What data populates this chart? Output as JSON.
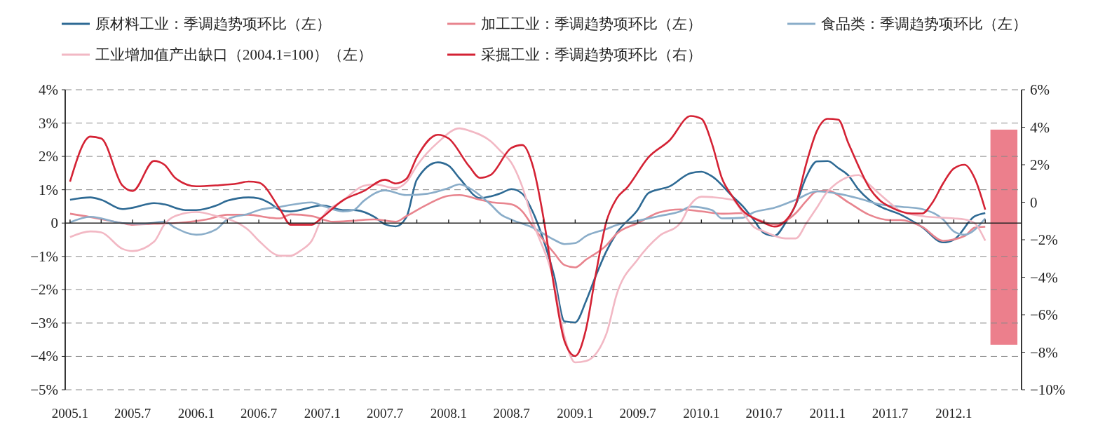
{
  "chart_data": {
    "type": "line",
    "legend": "top",
    "grid": "y",
    "line_style": "solid",
    "xlim": [
      "2004-12-18",
      "2012-07-15"
    ],
    "xticks": [
      {
        "value": "2005-01",
        "label": "2005.1"
      },
      {
        "value": "2005-04",
        "label": null
      },
      {
        "value": "2005-07",
        "label": "2005.7"
      },
      {
        "value": "2005-10",
        "label": null
      },
      {
        "value": "2006-01",
        "label": "2006.1"
      },
      {
        "value": "2006-04",
        "label": null
      },
      {
        "value": "2006-07",
        "label": "2006.7"
      },
      {
        "value": "2006-10",
        "label": null
      },
      {
        "value": "2007-01",
        "label": "2007.1"
      },
      {
        "value": "2007-04",
        "label": null
      },
      {
        "value": "2007-07",
        "label": "2007.7"
      },
      {
        "value": "2007-10",
        "label": null
      },
      {
        "value": "2008-01",
        "label": "2008.1"
      },
      {
        "value": "2008-04",
        "label": null
      },
      {
        "value": "2008-07",
        "label": "2008.7"
      },
      {
        "value": "2008-10",
        "label": null
      },
      {
        "value": "2009-01",
        "label": "2009.1"
      },
      {
        "value": "2009-04",
        "label": null
      },
      {
        "value": "2009-07",
        "label": "2009.7"
      },
      {
        "value": "2009-10",
        "label": null
      },
      {
        "value": "2010-01",
        "label": "2010.1"
      },
      {
        "value": "2010-04",
        "label": null
      },
      {
        "value": "2010-07",
        "label": "2010.7"
      },
      {
        "value": "2010-10",
        "label": null
      },
      {
        "value": "2011-01",
        "label": "2011.1"
      },
      {
        "value": "2011-04",
        "label": null
      },
      {
        "value": "2011-07",
        "label": "2011.7"
      },
      {
        "value": "2011-10",
        "label": null
      },
      {
        "value": "2012-01",
        "label": "2012.1"
      },
      {
        "value": "2012-04",
        "label": null
      }
    ],
    "ylim": [
      -5,
      4
    ],
    "yticks": [
      {
        "value": 4,
        "label": "4%"
      },
      {
        "value": 3,
        "label": "3%"
      },
      {
        "value": 2,
        "label": "2%"
      },
      {
        "value": 1,
        "label": "1%"
      },
      0,
      {
        "value": -1,
        "label": "−1%"
      },
      {
        "value": -2,
        "label": "−2%"
      },
      {
        "value": -3,
        "label": "−3%"
      },
      {
        "value": -4,
        "label": "−4%"
      },
      {
        "value": -5,
        "label": "−5%"
      }
    ],
    "y2lim": [
      -10,
      6
    ],
    "y2ticks": [
      {
        "value": 6,
        "label": "6%"
      },
      {
        "value": 4,
        "label": "4%"
      },
      {
        "value": 2,
        "label": "2%"
      },
      0,
      {
        "value": -2,
        "label": "−2%"
      },
      {
        "value": -4,
        "label": "−4%"
      },
      {
        "value": -6,
        "label": "−6%"
      },
      {
        "value": -8,
        "label": "−8%"
      },
      {
        "value": -10,
        "label": "−10%"
      }
    ],
    "bands": [
      {
        "axis": "x",
        "from": "2012-04-16",
        "to": "2012-07-03",
        "color": "#ec7f8c"
      }
    ],
    "series": [
      {
        "name": "原材料工业：季调趋势项环比（左）",
        "color": "#2e6a94",
        "x": [
          "2005-01",
          "2005-03",
          "2005-04",
          "2005-06",
          "2005-07",
          "2005-09",
          "2005-10",
          "2005-12",
          "2006-01",
          "2006-03",
          "2006-04",
          "2006-06",
          "2006-07",
          "2006-08",
          "2006-09",
          "2006-10",
          "2007-01",
          "2007-03",
          "2007-04",
          "2007-06",
          "2007-07",
          "2007-08",
          "2007-09",
          "2007-10",
          "2007-12",
          "2008-01",
          "2008-02",
          "2008-04",
          "2008-05",
          "2008-06",
          "2008-07",
          "2008-08",
          "2008-09",
          "2008-10",
          "2008-11",
          "2008-12",
          "2009-01",
          "2009-02",
          "2009-03",
          "2009-04",
          "2009-05",
          "2009-07",
          "2009-08",
          "2009-10",
          "2009-12",
          "2010-01",
          "2010-02",
          "2010-04",
          "2010-05",
          "2010-06",
          "2010-07",
          "2010-08",
          "2010-09",
          "2010-10",
          "2010-11",
          "2010-12",
          "2011-01",
          "2011-02",
          "2011-03",
          "2011-04",
          "2011-05",
          "2011-06",
          "2011-08",
          "2011-10",
          "2011-12",
          "2012-01",
          "2012-03",
          "2012-04"
        ],
        "values": [
          0.7,
          0.77,
          0.7,
          0.42,
          0.46,
          0.6,
          0.56,
          0.39,
          0.39,
          0.53,
          0.67,
          0.77,
          0.74,
          0.6,
          0.39,
          0.35,
          0.53,
          0.39,
          0.39,
          0.18,
          -0.04,
          -0.1,
          0.18,
          1.3,
          1.82,
          1.72,
          1.35,
          0.75,
          0.8,
          0.9,
          1.02,
          0.88,
          0.32,
          -0.5,
          -1.58,
          -2.95,
          -2.98,
          -2.35,
          -1.6,
          -0.85,
          -0.3,
          0.4,
          0.9,
          1.1,
          1.5,
          1.54,
          1.4,
          0.8,
          0.5,
          0.1,
          -0.3,
          -0.38,
          0.0,
          0.55,
          1.4,
          1.85,
          1.86,
          1.65,
          1.44,
          1.0,
          0.7,
          0.5,
          0.25,
          -0.12,
          -0.58,
          -0.5,
          0.2,
          0.3
        ]
      },
      {
        "name": "加工工业：季调趋势项环比（左）",
        "color": "#e8848e",
        "x": [
          "2005-01",
          "2005-03",
          "2005-06",
          "2005-07",
          "2005-09",
          "2005-11",
          "2006-02",
          "2006-04",
          "2006-06",
          "2006-08",
          "2006-09",
          "2006-10",
          "2006-12",
          "2007-02",
          "2007-04",
          "2007-06",
          "2007-08",
          "2007-09",
          "2007-11",
          "2008-01",
          "2008-02",
          "2008-04",
          "2008-05",
          "2008-07",
          "2008-08",
          "2008-09",
          "2008-11",
          "2008-12",
          "2009-01",
          "2009-02",
          "2009-04",
          "2009-05",
          "2009-07",
          "2009-09",
          "2009-11",
          "2010-01",
          "2010-03",
          "2010-05",
          "2010-06",
          "2010-08",
          "2010-10",
          "2010-11",
          "2010-12",
          "2011-01",
          "2011-03",
          "2011-05",
          "2011-07",
          "2011-08",
          "2011-10",
          "2011-12",
          "2012-02",
          "2012-03",
          "2012-04"
        ],
        "values": [
          0.28,
          0.18,
          0.0,
          -0.05,
          -0.02,
          0.0,
          0.11,
          0.25,
          0.25,
          0.16,
          0.14,
          0.26,
          0.21,
          0.04,
          0.07,
          0.11,
          0.04,
          0.21,
          0.56,
          0.82,
          0.84,
          0.7,
          0.63,
          0.56,
          0.35,
          -0.11,
          -0.9,
          -1.26,
          -1.33,
          -1.1,
          -0.67,
          -0.32,
          0.0,
          0.32,
          0.41,
          0.35,
          0.28,
          0.3,
          0.16,
          -0.04,
          0.3,
          0.67,
          0.95,
          0.97,
          0.63,
          0.25,
          0.09,
          0.09,
          -0.11,
          -0.53,
          -0.39,
          -0.14,
          -0.11
        ]
      },
      {
        "name": "食品类：季调趋势项环比（左）",
        "color": "#8aadc9",
        "x": [
          "2005-01",
          "2005-03",
          "2005-06",
          "2005-08",
          "2005-10",
          "2005-11",
          "2006-01",
          "2006-03",
          "2006-04",
          "2006-06",
          "2006-07",
          "2006-09",
          "2006-12",
          "2007-01",
          "2007-03",
          "2007-04",
          "2007-05",
          "2007-07",
          "2007-09",
          "2007-11",
          "2008-01",
          "2008-02",
          "2008-03",
          "2008-05",
          "2008-06",
          "2008-07",
          "2008-09",
          "2008-11",
          "2008-12",
          "2009-01",
          "2009-02",
          "2009-04",
          "2009-05",
          "2009-07",
          "2009-09",
          "2009-11",
          "2009-12",
          "2010-02",
          "2010-03",
          "2010-05",
          "2010-06",
          "2010-08",
          "2010-10",
          "2010-12",
          "2011-02",
          "2011-04",
          "2011-06",
          "2011-08",
          "2011-10",
          "2011-12",
          "2012-01",
          "2012-02",
          "2012-04"
        ],
        "values": [
          0.02,
          0.19,
          0.0,
          -0.02,
          0.04,
          -0.14,
          -0.35,
          -0.18,
          0.11,
          0.28,
          0.39,
          0.49,
          0.62,
          0.52,
          0.35,
          0.39,
          0.67,
          0.98,
          0.84,
          0.88,
          1.05,
          1.16,
          1.05,
          0.56,
          0.25,
          0.1,
          -0.14,
          -0.5,
          -0.63,
          -0.6,
          -0.39,
          -0.18,
          -0.06,
          0.07,
          0.21,
          0.35,
          0.49,
          0.39,
          0.14,
          0.16,
          0.32,
          0.46,
          0.7,
          0.95,
          0.88,
          0.74,
          0.56,
          0.49,
          0.42,
          0.11,
          -0.25,
          -0.35,
          0.14
        ]
      },
      {
        "name": "工业增加值产出缺口（2004.1=100）（左）",
        "color": "#f2b8c4",
        "x": [
          "2005-01",
          "2005-03",
          "2005-04",
          "2005-06",
          "2005-07",
          "2005-09",
          "2005-10",
          "2005-11",
          "2006-01",
          "2006-03",
          "2006-05",
          "2006-06",
          "2006-07",
          "2006-09",
          "2006-10",
          "2006-11",
          "2006-12",
          "2007-01",
          "2007-03",
          "2007-05",
          "2007-06",
          "2007-08",
          "2007-09",
          "2007-10",
          "2007-12",
          "2008-02",
          "2008-03",
          "2008-05",
          "2008-06",
          "2008-07",
          "2008-08",
          "2008-09",
          "2008-11",
          "2008-12",
          "2009-01",
          "2009-02",
          "2009-04",
          "2009-05",
          "2009-07",
          "2009-09",
          "2009-11",
          "2009-12",
          "2010-01",
          "2010-04",
          "2010-05",
          "2010-06",
          "2010-07",
          "2010-09",
          "2010-10",
          "2010-11",
          "2010-12",
          "2011-01",
          "2011-04",
          "2011-05",
          "2011-07",
          "2011-08",
          "2011-10",
          "2012-01",
          "2012-02",
          "2012-03",
          "2012-04"
        ],
        "values": [
          -0.42,
          -0.25,
          -0.28,
          -0.77,
          -0.84,
          -0.56,
          -0.04,
          0.21,
          0.33,
          0.21,
          0.0,
          -0.21,
          -0.53,
          -0.98,
          -0.98,
          -0.81,
          -0.53,
          0.18,
          0.67,
          1.12,
          1.16,
          1.05,
          1.23,
          1.72,
          2.42,
          2.84,
          2.77,
          2.46,
          2.14,
          1.8,
          1.09,
          0.04,
          -1.79,
          -3.4,
          -4.18,
          -4.14,
          -3.33,
          -2.14,
          -1.09,
          -0.39,
          0.0,
          0.56,
          0.79,
          0.7,
          0.3,
          -0.11,
          -0.25,
          -0.46,
          -0.46,
          0.0,
          0.46,
          0.95,
          1.44,
          1.16,
          0.6,
          0.35,
          0.21,
          0.14,
          0.11,
          0.0,
          -0.53
        ]
      },
      {
        "name": "采掘工业：季调趋势项环比（右）",
        "color": "#d42234",
        "axis": "y2",
        "x": [
          "2005-01",
          "2005-03",
          "2005-04",
          "2005-06",
          "2005-07",
          "2005-09",
          "2005-10",
          "2005-11",
          "2006-01",
          "2006-03",
          "2006-05",
          "2006-06",
          "2006-07",
          "2006-09",
          "2006-10",
          "2006-12",
          "2007-01",
          "2007-03",
          "2007-05",
          "2007-07",
          "2007-08",
          "2007-09",
          "2007-10",
          "2007-12",
          "2008-01",
          "2008-03",
          "2008-04",
          "2008-05",
          "2008-07",
          "2008-08",
          "2008-09",
          "2008-10",
          "2008-11",
          "2008-12",
          "2009-01",
          "2009-02",
          "2009-03",
          "2009-04",
          "2009-05",
          "2009-06",
          "2009-08",
          "2009-10",
          "2009-12",
          "2010-01",
          "2010-02",
          "2010-03",
          "2010-04",
          "2010-05",
          "2010-06",
          "2010-07",
          "2010-08",
          "2010-09",
          "2010-10",
          "2010-11",
          "2010-12",
          "2011-01",
          "2011-02",
          "2011-03",
          "2011-04",
          "2011-05",
          "2011-06",
          "2011-07",
          "2011-09",
          "2011-10",
          "2011-11",
          "2011-12",
          "2012-01",
          "2012-02",
          "2012-03",
          "2012-04"
        ],
        "values": [
          1.1,
          3.5,
          3.4,
          0.9,
          0.6,
          2.2,
          2.0,
          1.3,
          0.85,
          0.9,
          1.0,
          1.1,
          1.05,
          -0.4,
          -1.2,
          -1.2,
          -0.8,
          0.1,
          0.6,
          1.2,
          1.0,
          1.25,
          2.4,
          3.6,
          3.4,
          1.9,
          1.3,
          1.45,
          2.9,
          3.05,
          1.9,
          -0.8,
          -4.5,
          -7.4,
          -8.2,
          -6.8,
          -3.9,
          -1.05,
          0.2,
          0.8,
          2.4,
          3.3,
          4.6,
          4.45,
          3.1,
          1.3,
          0.3,
          -0.45,
          -0.85,
          -1.1,
          -1.3,
          -1.0,
          -0.1,
          2.1,
          3.8,
          4.45,
          4.4,
          3.2,
          1.9,
          0.8,
          0.1,
          -0.25,
          -0.6,
          -0.6,
          0.0,
          1.0,
          1.8,
          2.0,
          1.3,
          -0.4
        ]
      }
    ]
  }
}
